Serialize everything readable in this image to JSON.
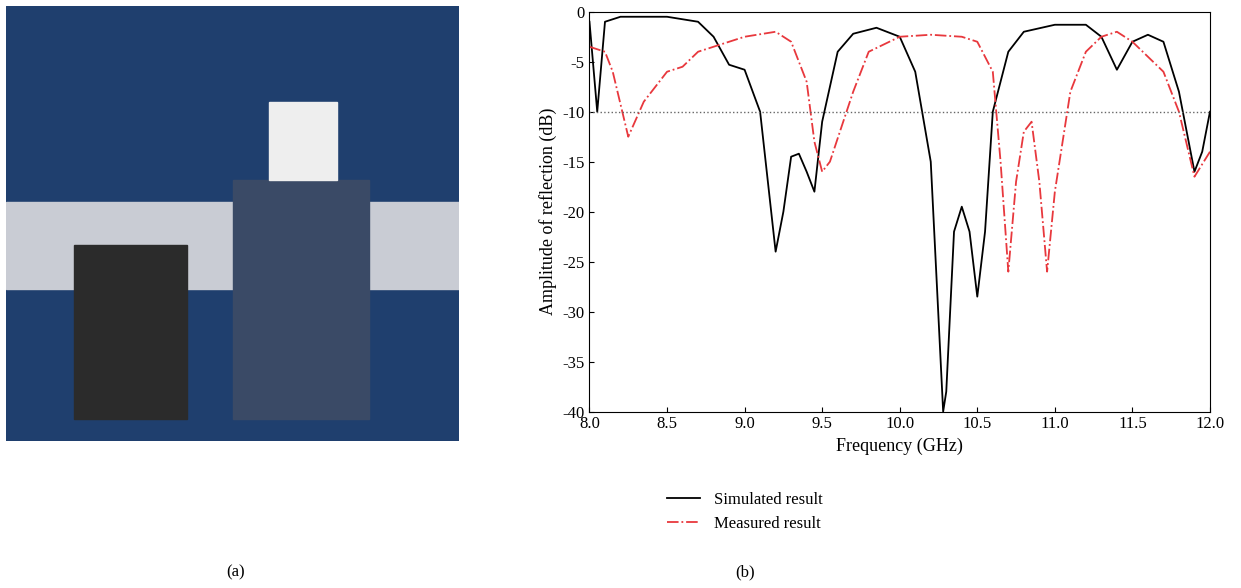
{
  "panel_labels": [
    "(a)",
    "(b)"
  ],
  "chart_data": {
    "type": "line",
    "xlabel": "Frequency (GHz)",
    "ylabel": "Amplitude of reflection (dB)",
    "xlim": [
      8.0,
      12.0
    ],
    "xticks": [
      {
        "value": 8.0,
        "label": "8.0"
      },
      {
        "value": 8.5,
        "label": "8.5"
      },
      {
        "value": 9.0,
        "label": "9.0"
      },
      {
        "value": 9.5,
        "label": "9.5"
      },
      {
        "value": 10.0,
        "label": "10.0"
      },
      {
        "value": 10.5,
        "label": "10.5"
      },
      {
        "value": 11.0,
        "label": "11.0"
      },
      {
        "value": 11.5,
        "label": "11.5"
      },
      {
        "value": 12.0,
        "label": "12.0"
      }
    ],
    "ylim": [
      -40,
      0
    ],
    "yticks": [
      0,
      -5,
      -10,
      -15,
      -20,
      -25,
      -30,
      -35,
      -40
    ],
    "threshold": -10,
    "legend": "lower center",
    "series": [
      {
        "name": "Simulated result",
        "color": "#000000",
        "line_style": "solid",
        "x": [
          8.0,
          8.05,
          8.1,
          8.2,
          8.5,
          8.7,
          8.8,
          8.9,
          9.0,
          9.1,
          9.2,
          9.25,
          9.3,
          9.35,
          9.4,
          9.45,
          9.5,
          9.6,
          9.7,
          9.85,
          10.0,
          10.1,
          10.2,
          10.28,
          10.3,
          10.35,
          10.4,
          10.45,
          10.5,
          10.55,
          10.6,
          10.7,
          10.8,
          11.0,
          11.2,
          11.3,
          11.4,
          11.5,
          11.6,
          11.7,
          11.8,
          11.9,
          11.95,
          12.0
        ],
        "values": [
          -1,
          -10,
          -1,
          -0.5,
          -0.5,
          -1,
          -2.5,
          -5.3,
          -5.8,
          -10,
          -24,
          -20,
          -14.5,
          -14.2,
          -16,
          -18,
          -11,
          -4,
          -2.2,
          -1.6,
          -2.5,
          -6,
          -15,
          -40,
          -38,
          -22,
          -19.5,
          -22,
          -28.5,
          -22,
          -10,
          -4,
          -2,
          -1.3,
          -1.3,
          -2.5,
          -5.8,
          -3,
          -2.3,
          -3,
          -8,
          -16,
          -14,
          -10
        ]
      },
      {
        "name": "Measured result",
        "color": "#e8383d",
        "line_style": "dashdot",
        "x": [
          8.0,
          8.1,
          8.15,
          8.25,
          8.35,
          8.5,
          8.6,
          8.7,
          8.9,
          9.0,
          9.2,
          9.3,
          9.4,
          9.45,
          9.5,
          9.55,
          9.7,
          9.8,
          10.0,
          10.2,
          10.4,
          10.5,
          10.6,
          10.65,
          10.7,
          10.75,
          10.8,
          10.85,
          10.9,
          10.95,
          11.0,
          11.1,
          11.2,
          11.3,
          11.4,
          11.5,
          11.7,
          11.8,
          11.9,
          12.0
        ],
        "values": [
          -3.5,
          -4,
          -6,
          -12.5,
          -9,
          -6,
          -5.5,
          -4,
          -3,
          -2.5,
          -2,
          -3,
          -7,
          -13,
          -16,
          -15,
          -8,
          -4,
          -2.5,
          -2.3,
          -2.5,
          -3,
          -6,
          -15,
          -26,
          -17,
          -12,
          -11,
          -17,
          -26,
          -18,
          -8,
          -4,
          -2.5,
          -2,
          -3,
          -6,
          -10,
          -16.5,
          -14
        ]
      }
    ]
  }
}
